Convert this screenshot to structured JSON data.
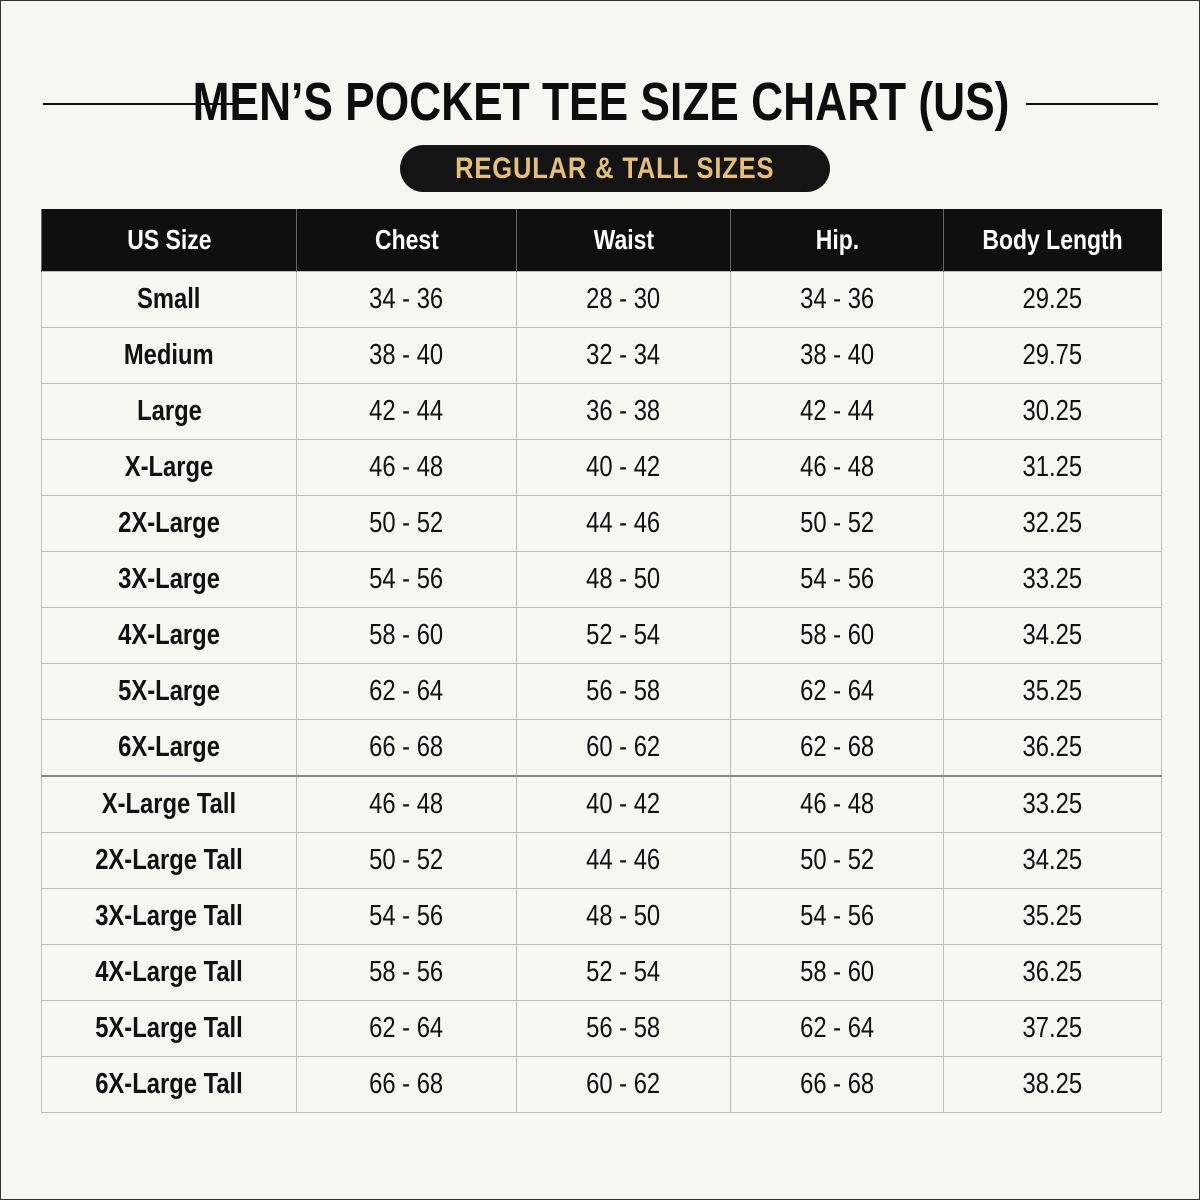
{
  "header": {
    "title": "MEN’S POCKET TEE SIZE CHART (US)",
    "subtitle": "REGULAR & TALL SIZES"
  },
  "table": {
    "columns": [
      "US Size",
      "Chest",
      "Waist",
      "Hip.",
      "Body Length"
    ],
    "rows": [
      [
        "Small",
        "34 - 36",
        "28 - 30",
        "34 - 36",
        "29.25"
      ],
      [
        "Medium",
        "38 - 40",
        "32 - 34",
        "38 - 40",
        "29.75"
      ],
      [
        "Large",
        "42 - 44",
        "36 - 38",
        "42 - 44",
        "30.25"
      ],
      [
        "X-Large",
        "46 - 48",
        "40 - 42",
        "46 - 48",
        "31.25"
      ],
      [
        "2X-Large",
        "50 - 52",
        "44 - 46",
        "50 - 52",
        "32.25"
      ],
      [
        "3X-Large",
        "54 - 56",
        "48 - 50",
        "54 - 56",
        "33.25"
      ],
      [
        "4X-Large",
        "58 - 60",
        "52 - 54",
        "58 - 60",
        "34.25"
      ],
      [
        "5X-Large",
        "62 - 64",
        "56 - 58",
        "62 - 64",
        "35.25"
      ],
      [
        "6X-Large",
        "66 - 68",
        "60 - 62",
        "62 - 68",
        "36.25"
      ],
      [
        "X-Large Tall",
        "46 - 48",
        "40 - 42",
        "46 - 48",
        "33.25"
      ],
      [
        "2X-Large Tall",
        "50 - 52",
        "44 - 46",
        "50 - 52",
        "34.25"
      ],
      [
        "3X-Large Tall",
        "54 - 56",
        "48 - 50",
        "54 - 56",
        "35.25"
      ],
      [
        "4X-Large Tall",
        "58 - 56",
        "52 - 54",
        "58 - 60",
        "36.25"
      ],
      [
        "5X-Large Tall",
        "62 - 64",
        "56 - 58",
        "62 - 64",
        "37.25"
      ],
      [
        "6X-Large Tall",
        "66 - 68",
        "60 - 62",
        "66 - 68",
        "38.25"
      ]
    ]
  }
}
